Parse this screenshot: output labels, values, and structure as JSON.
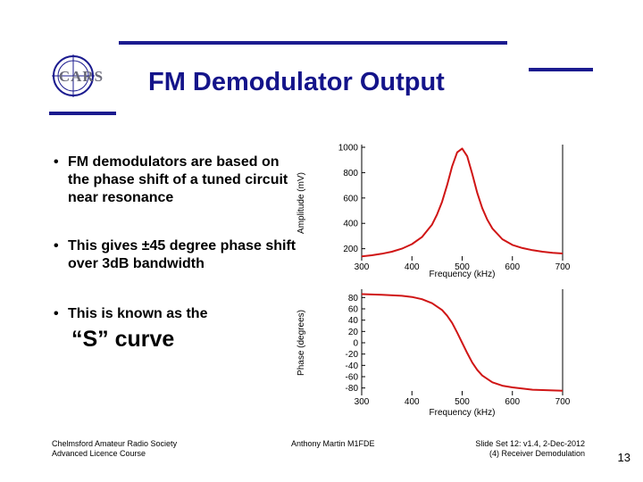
{
  "header": {
    "title": "FM Demodulator Output",
    "logo_text": "CARS",
    "brand_color": "#1b1b8f"
  },
  "bullets": [
    "FM demodulators are based on the phase shift of a tuned circuit near resonance",
    "This gives ±45 degree phase shift over 3dB bandwidth",
    "This is known as the"
  ],
  "bullet_marker": "•",
  "scurve_label": "“S” curve",
  "footer": {
    "left_line1": "Chelmsford Amateur Radio Society",
    "left_line2": "Advanced Licence Course",
    "center": "Anthony Martin M1FDE",
    "right_line1": "Slide Set 12: v1.4, 2-Dec-2012",
    "right_line2": "(4) Receiver Demodulation",
    "page_number": "13"
  },
  "chart_data": [
    {
      "type": "line",
      "xlabel": "Frequency (kHz)",
      "ylabel": "Amplitude (mV)",
      "xlim": [
        300,
        700
      ],
      "ylim": [
        120,
        1000
      ],
      "x_ticks": [
        300,
        400,
        500,
        600,
        700
      ],
      "y_ticks": [
        200,
        400,
        600,
        800,
        1000
      ],
      "line_color": "#d01515",
      "x": [
        300,
        320,
        340,
        360,
        380,
        400,
        420,
        440,
        450,
        460,
        470,
        480,
        490,
        500,
        510,
        520,
        530,
        540,
        550,
        560,
        580,
        600,
        620,
        640,
        660,
        680,
        700
      ],
      "y": [
        140,
        148,
        160,
        176,
        200,
        236,
        292,
        390,
        470,
        570,
        700,
        850,
        960,
        990,
        930,
        790,
        640,
        520,
        430,
        360,
        275,
        230,
        205,
        188,
        176,
        168,
        162
      ]
    },
    {
      "type": "line",
      "xlabel": "Frequency (kHz)",
      "ylabel": "Phase (degrees)",
      "xlim": [
        300,
        700
      ],
      "ylim": [
        -90,
        90
      ],
      "x_ticks": [
        300,
        400,
        500,
        600,
        700
      ],
      "y_ticks": [
        80,
        60,
        40,
        20,
        0,
        -20,
        -40,
        -60,
        -80
      ],
      "line_color": "#d01515",
      "x": [
        300,
        340,
        380,
        400,
        420,
        440,
        460,
        470,
        480,
        490,
        500,
        510,
        520,
        530,
        540,
        560,
        580,
        600,
        640,
        700
      ],
      "y": [
        86,
        85,
        83,
        81,
        77,
        70,
        58,
        48,
        35,
        18,
        0,
        -18,
        -35,
        -48,
        -58,
        -70,
        -76,
        -79,
        -83,
        -85
      ]
    }
  ]
}
